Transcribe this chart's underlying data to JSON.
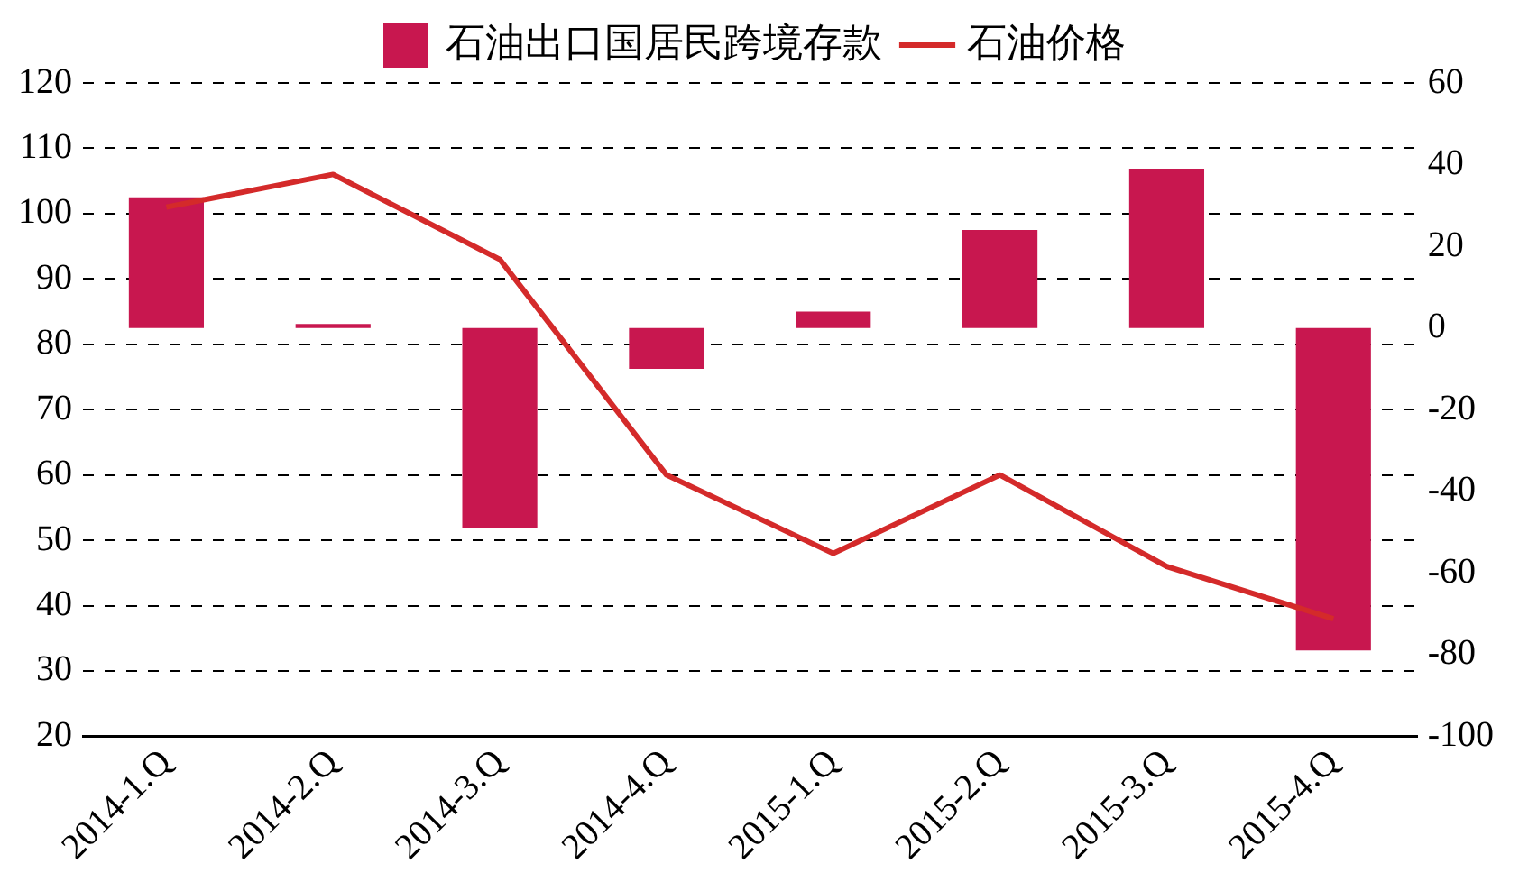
{
  "chart_data": {
    "type": "bar",
    "categories": [
      "2014-1.Q",
      "2014-2.Q",
      "2014-3.Q",
      "2014-4.Q",
      "2015-1.Q",
      "2015-2.Q",
      "2015-3.Q",
      "2015-4.Q"
    ],
    "series": [
      {
        "name": "石油出口国居民跨境存款",
        "axis": "y2",
        "color": "#c8174f",
        "values": [
          32,
          1,
          -49,
          -10,
          4,
          24,
          39,
          -79
        ]
      },
      {
        "name": "石油价格",
        "type": "line",
        "color": "#d42a2a",
        "values": [
          101,
          106,
          93,
          60,
          48,
          60,
          46,
          38
        ]
      }
    ],
    "ylim": [
      20,
      120
    ],
    "yticks": [
      20,
      30,
      40,
      50,
      60,
      70,
      80,
      90,
      100,
      110,
      120
    ],
    "y2lim": [
      -100,
      60
    ],
    "y2ticks": [
      -100,
      -80,
      -60,
      -40,
      -20,
      0,
      20,
      40,
      60
    ],
    "grid": "y",
    "legend": "top",
    "marker": "none",
    "line_style": "solid"
  }
}
